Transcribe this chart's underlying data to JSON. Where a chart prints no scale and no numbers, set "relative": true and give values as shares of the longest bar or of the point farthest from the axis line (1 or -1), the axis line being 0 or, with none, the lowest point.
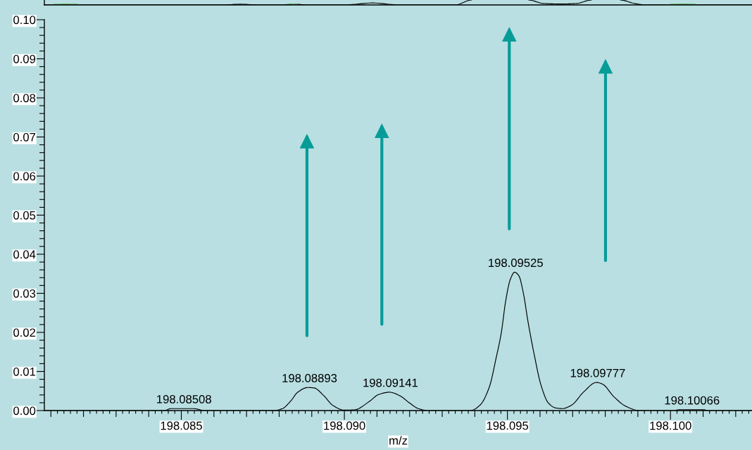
{
  "chart_data": [
    {
      "type": "line",
      "relative": true,
      "xlim": [
        198.0808,
        198.1025
      ],
      "series": [
        {
          "color": "#000000",
          "x": [
            198.0808,
            198.08626,
            198.0868,
            198.08738,
            198.08805,
            198.08848,
            198.08887,
            198.09,
            198.09087,
            198.09167,
            198.0934,
            198.0939,
            198.0948,
            198.09565,
            198.0961,
            198.09664,
            198.09712,
            198.09758,
            198.098,
            198.09846,
            198.0989,
            198.09926,
            198.1025
          ],
          "values": [
            0,
            0,
            0.15,
            0,
            0,
            0.15,
            0,
            0,
            0.4,
            0,
            0,
            1,
            null,
            1,
            0.3,
            0.2,
            0.3,
            1,
            null,
            1,
            0.3,
            0,
            0
          ]
        },
        {
          "color": "#66bb66",
          "x": [
            198.0811,
            198.08146,
            198.08182,
            198.085,
            198.08825,
            198.08841,
            198.08857,
            198.094,
            198.1,
            198.10038,
            198.10076
          ],
          "values": [
            0.15,
            0.2,
            0.15,
            null,
            0.15,
            0.2,
            0.15,
            null,
            0.15,
            0.2,
            0.15
          ]
        }
      ]
    },
    {
      "type": "line",
      "xlabel": "m/z",
      "xlim": [
        198.0808,
        198.1025
      ],
      "ylim": [
        0,
        0.1
      ],
      "xticks": [
        {
          "value": 198.081,
          "label": null
        },
        {
          "value": 198.0812,
          "label": null
        },
        {
          "value": 198.0814,
          "label": null
        },
        {
          "value": 198.0816,
          "label": null
        },
        {
          "value": 198.0818,
          "label": null
        },
        {
          "value": 198.082,
          "label": null
        },
        {
          "value": 198.0822,
          "label": null
        },
        {
          "value": 198.0824,
          "label": null
        },
        {
          "value": 198.0826,
          "label": null
        },
        {
          "value": 198.0828,
          "label": null
        },
        {
          "value": 198.083,
          "label": null
        },
        {
          "value": 198.0832,
          "label": null
        },
        {
          "value": 198.0834,
          "label": null
        },
        {
          "value": 198.0836,
          "label": null
        },
        {
          "value": 198.0838,
          "label": null
        },
        {
          "value": 198.084,
          "label": null
        },
        {
          "value": 198.0842,
          "label": null
        },
        {
          "value": 198.0844,
          "label": null
        },
        {
          "value": 198.0846,
          "label": null
        },
        {
          "value": 198.0848,
          "label": null
        },
        {
          "value": 198.085,
          "label": "198.085"
        },
        {
          "value": 198.0852,
          "label": null
        },
        {
          "value": 198.0854,
          "label": null
        },
        {
          "value": 198.0856,
          "label": null
        },
        {
          "value": 198.0858,
          "label": null
        },
        {
          "value": 198.086,
          "label": null
        },
        {
          "value": 198.0862,
          "label": null
        },
        {
          "value": 198.0864,
          "label": null
        },
        {
          "value": 198.0866,
          "label": null
        },
        {
          "value": 198.0868,
          "label": null
        },
        {
          "value": 198.087,
          "label": null
        },
        {
          "value": 198.0872,
          "label": null
        },
        {
          "value": 198.0874,
          "label": null
        },
        {
          "value": 198.0876,
          "label": null
        },
        {
          "value": 198.0878,
          "label": null
        },
        {
          "value": 198.088,
          "label": null
        },
        {
          "value": 198.0882,
          "label": null
        },
        {
          "value": 198.0884,
          "label": null
        },
        {
          "value": 198.0886,
          "label": null
        },
        {
          "value": 198.0888,
          "label": null
        },
        {
          "value": 198.089,
          "label": null
        },
        {
          "value": 198.0892,
          "label": null
        },
        {
          "value": 198.0894,
          "label": null
        },
        {
          "value": 198.0896,
          "label": null
        },
        {
          "value": 198.0898,
          "label": null
        },
        {
          "value": 198.09,
          "label": "198.090"
        },
        {
          "value": 198.0902,
          "label": null
        },
        {
          "value": 198.0904,
          "label": null
        },
        {
          "value": 198.0906,
          "label": null
        },
        {
          "value": 198.0908,
          "label": null
        },
        {
          "value": 198.091,
          "label": null
        },
        {
          "value": 198.0912,
          "label": null
        },
        {
          "value": 198.0914,
          "label": null
        },
        {
          "value": 198.0916,
          "label": null
        },
        {
          "value": 198.0918,
          "label": null
        },
        {
          "value": 198.092,
          "label": null
        },
        {
          "value": 198.0922,
          "label": null
        },
        {
          "value": 198.0924,
          "label": null
        },
        {
          "value": 198.0926,
          "label": null
        },
        {
          "value": 198.0928,
          "label": null
        },
        {
          "value": 198.093,
          "label": null
        },
        {
          "value": 198.0932,
          "label": null
        },
        {
          "value": 198.0934,
          "label": null
        },
        {
          "value": 198.0936,
          "label": null
        },
        {
          "value": 198.0938,
          "label": null
        },
        {
          "value": 198.094,
          "label": null
        },
        {
          "value": 198.0942,
          "label": null
        },
        {
          "value": 198.0944,
          "label": null
        },
        {
          "value": 198.0946,
          "label": null
        },
        {
          "value": 198.0948,
          "label": null
        },
        {
          "value": 198.095,
          "label": "198.095"
        },
        {
          "value": 198.0952,
          "label": null
        },
        {
          "value": 198.0954,
          "label": null
        },
        {
          "value": 198.0956,
          "label": null
        },
        {
          "value": 198.0958,
          "label": null
        },
        {
          "value": 198.096,
          "label": null
        },
        {
          "value": 198.0962,
          "label": null
        },
        {
          "value": 198.0964,
          "label": null
        },
        {
          "value": 198.0966,
          "label": null
        },
        {
          "value": 198.0968,
          "label": null
        },
        {
          "value": 198.097,
          "label": null
        },
        {
          "value": 198.0972,
          "label": null
        },
        {
          "value": 198.0974,
          "label": null
        },
        {
          "value": 198.0976,
          "label": null
        },
        {
          "value": 198.0978,
          "label": null
        },
        {
          "value": 198.098,
          "label": null
        },
        {
          "value": 198.0982,
          "label": null
        },
        {
          "value": 198.0984,
          "label": null
        },
        {
          "value": 198.0986,
          "label": null
        },
        {
          "value": 198.0988,
          "label": null
        },
        {
          "value": 198.099,
          "label": null
        },
        {
          "value": 198.0992,
          "label": null
        },
        {
          "value": 198.0994,
          "label": null
        },
        {
          "value": 198.0996,
          "label": null
        },
        {
          "value": 198.0998,
          "label": null
        },
        {
          "value": 198.1,
          "label": "198.100"
        },
        {
          "value": 198.1002,
          "label": null
        },
        {
          "value": 198.1004,
          "label": null
        },
        {
          "value": 198.1006,
          "label": null
        },
        {
          "value": 198.1008,
          "label": null
        },
        {
          "value": 198.101,
          "label": null
        },
        {
          "value": 198.1012,
          "label": null
        },
        {
          "value": 198.1014,
          "label": null
        },
        {
          "value": 198.1016,
          "label": null
        },
        {
          "value": 198.1018,
          "label": null
        },
        {
          "value": 198.102,
          "label": null
        },
        {
          "value": 198.1022,
          "label": null
        },
        {
          "value": 198.1024,
          "label": null
        }
      ],
      "yticks": [
        {
          "value": 0,
          "label": "0.00"
        },
        {
          "value": 0.002,
          "label": null
        },
        {
          "value": 0.004,
          "label": null
        },
        {
          "value": 0.006,
          "label": null
        },
        {
          "value": 0.008,
          "label": null
        },
        {
          "value": 0.01,
          "label": "0.01"
        },
        {
          "value": 0.012,
          "label": null
        },
        {
          "value": 0.014,
          "label": null
        },
        {
          "value": 0.016,
          "label": null
        },
        {
          "value": 0.018,
          "label": null
        },
        {
          "value": 0.02,
          "label": "0.02"
        },
        {
          "value": 0.022,
          "label": null
        },
        {
          "value": 0.024,
          "label": null
        },
        {
          "value": 0.026,
          "label": null
        },
        {
          "value": 0.028,
          "label": null
        },
        {
          "value": 0.03,
          "label": "0.03"
        },
        {
          "value": 0.032,
          "label": null
        },
        {
          "value": 0.034,
          "label": null
        },
        {
          "value": 0.036,
          "label": null
        },
        {
          "value": 0.038,
          "label": null
        },
        {
          "value": 0.04,
          "label": "0.04"
        },
        {
          "value": 0.042,
          "label": null
        },
        {
          "value": 0.044,
          "label": null
        },
        {
          "value": 0.046,
          "label": null
        },
        {
          "value": 0.048,
          "label": null
        },
        {
          "value": 0.05,
          "label": "0.05"
        },
        {
          "value": 0.052,
          "label": null
        },
        {
          "value": 0.054,
          "label": null
        },
        {
          "value": 0.056,
          "label": null
        },
        {
          "value": 0.058,
          "label": null
        },
        {
          "value": 0.06,
          "label": "0.06"
        },
        {
          "value": 0.062,
          "label": null
        },
        {
          "value": 0.064,
          "label": null
        },
        {
          "value": 0.066,
          "label": null
        },
        {
          "value": 0.068,
          "label": null
        },
        {
          "value": 0.07,
          "label": "0.07"
        },
        {
          "value": 0.072,
          "label": null
        },
        {
          "value": 0.074,
          "label": null
        },
        {
          "value": 0.076,
          "label": null
        },
        {
          "value": 0.078,
          "label": null
        },
        {
          "value": 0.08,
          "label": "0.08"
        },
        {
          "value": 0.082,
          "label": null
        },
        {
          "value": 0.084,
          "label": null
        },
        {
          "value": 0.086,
          "label": null
        },
        {
          "value": 0.088,
          "label": null
        },
        {
          "value": 0.09,
          "label": "0.09"
        },
        {
          "value": 0.092,
          "label": null
        },
        {
          "value": 0.094,
          "label": null
        },
        {
          "value": 0.096,
          "label": null
        },
        {
          "value": 0.098,
          "label": null
        },
        {
          "value": 0.1,
          "label": "0.10"
        }
      ],
      "x": [
        198.0808,
        198.08448,
        198.08468,
        198.08539,
        198.08571,
        198.08784,
        198.0881,
        198.08836,
        198.08857,
        198.08888,
        198.08907,
        198.08937,
        198.08965,
        198.09,
        198.09032,
        198.09076,
        198.09105,
        198.09138,
        198.0917,
        198.09199,
        198.09227,
        198.09257,
        198.09387,
        198.09416,
        198.09444,
        198.09466,
        198.09481,
        198.09495,
        198.09509,
        198.09522,
        198.09535,
        198.09549,
        198.09563,
        198.09582,
        198.09603,
        198.09625,
        198.09647,
        198.09668,
        198.09697,
        198.09733,
        198.09773,
        198.09791,
        198.09827,
        198.09863,
        198.09905,
        198.10011,
        198.10026,
        198.10104,
        198.10113,
        198.1025
      ],
      "series": [
        {
          "color": "#000000",
          "values": [
            0,
            0,
            0.0005,
            0.0005,
            0,
            0,
            0.0005,
            0.0025,
            0.0047,
            0.0059,
            0.0058,
            0.0038,
            0.0013,
            0.0001,
            0.0002,
            0.0023,
            0.0041,
            0.0047,
            0.0038,
            0.002,
            0.0005,
            0,
            0,
            0.0014,
            0.0059,
            0.0137,
            0.0198,
            0.0282,
            0.0336,
            0.0354,
            0.0345,
            0.03,
            0.0228,
            0.0144,
            0.0065,
            0.002,
            0.0007,
            0.0005,
            0.0014,
            0.0047,
            0.0072,
            0.0068,
            0.0035,
            0.0011,
            0,
            0,
            0.0002,
            0.0002,
            0,
            0
          ]
        }
      ],
      "annotations": [
        {
          "text": "198.08508",
          "x": 198.08508,
          "y": 0.0005
        },
        {
          "text": "198.08893",
          "x": 198.08893,
          "y": 0.0059
        },
        {
          "text": "198.09141",
          "x": 198.09141,
          "y": 0.0047
        },
        {
          "text": "198.09525",
          "x": 198.09525,
          "y": 0.0354
        },
        {
          "text": "198.09777",
          "x": 198.09777,
          "y": 0.0072
        },
        {
          "text": "198.10066",
          "x": 198.10066,
          "y": 0.0002
        }
      ]
    }
  ]
}
